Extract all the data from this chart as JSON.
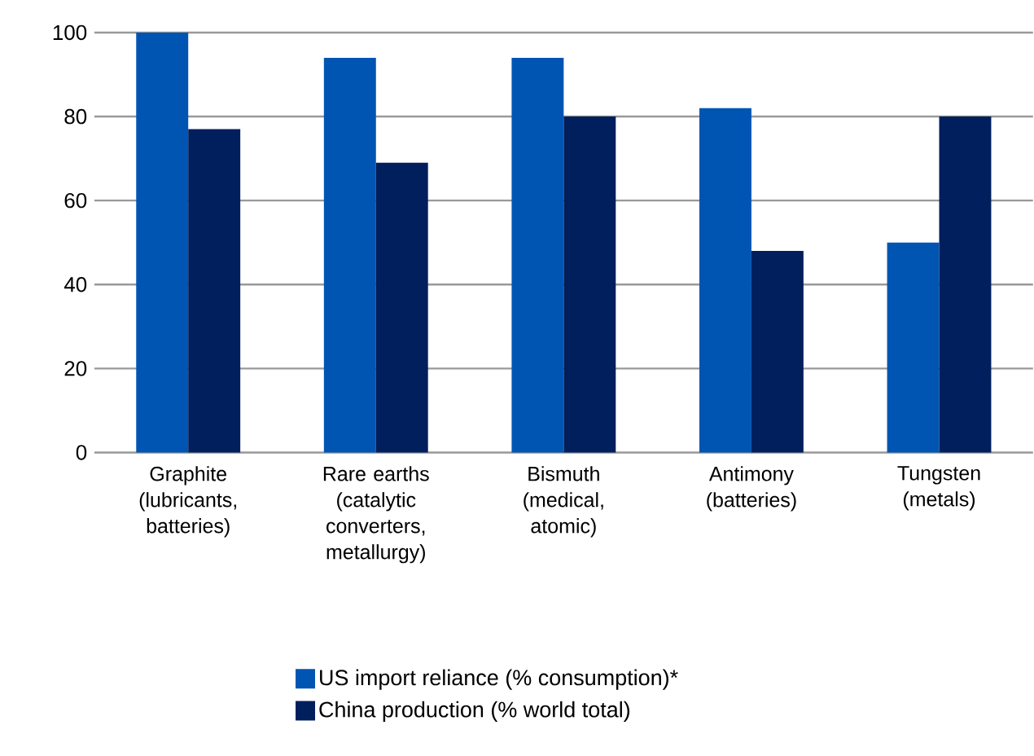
{
  "chart_data": {
    "type": "bar",
    "categories": [
      "Graphite (lubricants, batteries)",
      "Rare earths (catalytic converters, metallurgy)",
      "Bismuth (medical, atomic)",
      "Antimony (batteries)",
      "Tungsten (metals)"
    ],
    "series": [
      {
        "name": "US import reliance (% consumption)*",
        "color": "#0055b3",
        "values": [
          100,
          94,
          94,
          82,
          50
        ]
      },
      {
        "name": "China production (% world total)",
        "color": "#001f5c",
        "values": [
          77,
          69,
          80,
          48,
          80
        ]
      }
    ],
    "ylim": [
      0,
      100
    ],
    "yticks": [
      0,
      20,
      40,
      60,
      80,
      100
    ],
    "grid": "y",
    "legend": "bottom"
  }
}
